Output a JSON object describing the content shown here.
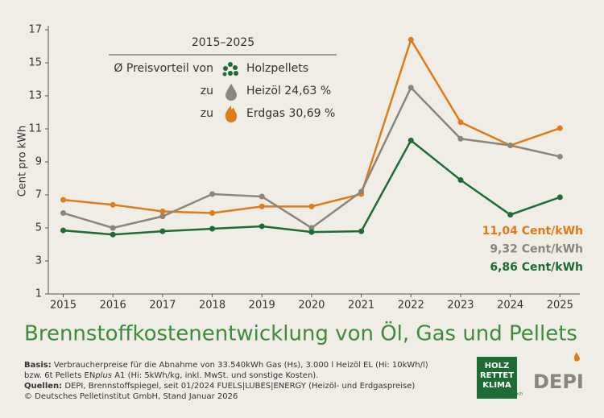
{
  "chart_data": {
    "type": "line",
    "y_label": "Cent pro kWh",
    "x": [
      2015,
      2016,
      2017,
      2018,
      2019,
      2020,
      2021,
      2022,
      2023,
      2024,
      2025
    ],
    "xlim": [
      2014.7,
      2025.4
    ],
    "xticks": [
      2015,
      2016,
      2017,
      2018,
      2019,
      2020,
      2021,
      2022,
      2023,
      2024,
      2025
    ],
    "ylim": [
      1,
      17
    ],
    "yticks": [
      1,
      3,
      5,
      7,
      9,
      11,
      13,
      15,
      17
    ],
    "series": [
      {
        "name": "Erdgas",
        "color": "#e07b1a",
        "values": [
          6.7,
          6.4,
          6.0,
          5.9,
          6.3,
          6.3,
          7.05,
          16.4,
          11.4,
          10.0,
          11.04
        ],
        "value_labels": [
          null,
          null,
          null,
          null,
          null,
          null,
          null,
          null,
          null,
          null,
          "11,04 Cent/kWh"
        ]
      },
      {
        "name": "Heizöl",
        "color": "#8c857b",
        "values": [
          5.9,
          5.0,
          5.7,
          7.05,
          6.9,
          5.0,
          7.2,
          13.5,
          10.4,
          10.0,
          9.32
        ],
        "value_labels": [
          null,
          null,
          null,
          null,
          null,
          null,
          null,
          null,
          null,
          null,
          "9,32 Cent/kWh"
        ]
      },
      {
        "name": "Holzpellets",
        "color": "#1d6b35",
        "values": [
          4.85,
          4.6,
          4.8,
          4.95,
          5.1,
          4.75,
          4.8,
          10.3,
          7.9,
          5.8,
          6.86
        ],
        "value_labels": [
          null,
          null,
          null,
          null,
          null,
          null,
          null,
          null,
          null,
          null,
          "6,86 Cent/kWh"
        ]
      }
    ],
    "legend": {
      "period": "2015–2025",
      "intro": "Ø Preisvorteil von",
      "prefix_oil": "zu",
      "oil_advantage": "24,63 %",
      "prefix_gas": "zu",
      "gas_advantage": "30,69 %"
    },
    "title": "Brennstoffkostenentwicklung von Öl, Gas und Pellets"
  },
  "footer": {
    "basis_label": "Basis:",
    "basis_line1": "Verbraucherpreise für die Abnahme von 33.540kWh Gas (Hs), 3.000 l Heizöl EL (Hi: 10kWh/l)",
    "basis_line2a": "bzw. 6t Pellets EN",
    "basis_line2b": "plus",
    "basis_line2c": " A1 (Hi: 5kWh/kg, inkl. MwSt. und sonstige Kosten).",
    "sources_label": "Quellen:",
    "sources_text": "DEPI, Brennstoffspiegel, seit 01/2024 FUELS|LUBES|ENERGY (Heizöl- und Erdgaspreise)",
    "copyright": "© Deutsches Pelletinstitut GmbH, Stand Januar 2026",
    "badge_line1": "HOLZ",
    "badge_line2": "RETTET",
    "badge_line3": "KLIMA",
    "badge_tag": "Es wächst nach",
    "logo": "DEPI"
  }
}
